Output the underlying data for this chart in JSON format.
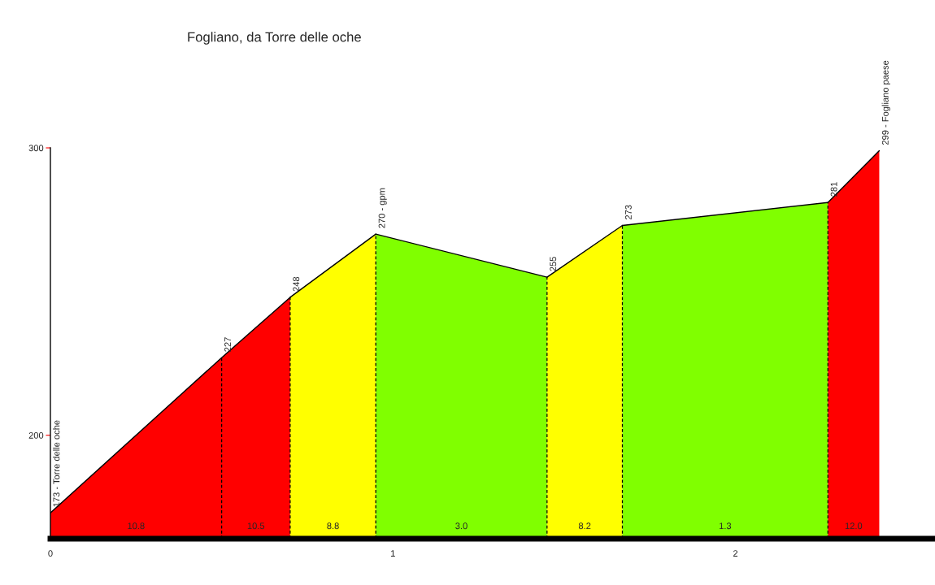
{
  "chart_data": {
    "type": "area",
    "title": "Fogliano, da Torre delle oche",
    "series": [
      {
        "color": "#ff0000",
        "x": [
          0,
          0.5,
          0.7
        ],
        "values": [
          173,
          227,
          248
        ],
        "value_labels": [
          "173 - Torre delle oche",
          "227",
          null
        ]
      },
      {
        "color": "#ffff00",
        "x": [
          0.7,
          0.95
        ],
        "values": [
          248,
          270
        ],
        "value_labels": [
          "248",
          null
        ]
      },
      {
        "color": "#80ff00",
        "x": [
          0.95,
          1.45
        ],
        "values": [
          270,
          255
        ],
        "value_labels": [
          "270 - gpm",
          null
        ]
      },
      {
        "color": "#ffff00",
        "x": [
          1.45,
          1.67
        ],
        "values": [
          255,
          273
        ],
        "value_labels": [
          "255",
          null
        ]
      },
      {
        "color": "#80ff00",
        "x": [
          1.67,
          2.27
        ],
        "values": [
          273,
          281
        ],
        "value_labels": [
          "273",
          null
        ]
      },
      {
        "color": "#ff0000",
        "x": [
          2.27,
          2.42
        ],
        "values": [
          281,
          299
        ],
        "value_labels": [
          "281",
          "299 - Fogliano paese"
        ]
      }
    ],
    "ref_lines": [
      {
        "axis": "x",
        "value": 0.5,
        "color": "#000000",
        "line_style": "dashed"
      },
      {
        "axis": "x",
        "value": 0.7,
        "color": "#000000",
        "line_style": "dashed"
      },
      {
        "axis": "x",
        "value": 0.95,
        "color": "#000000",
        "line_style": "dashed"
      },
      {
        "axis": "x",
        "value": 1.45,
        "color": "#000000",
        "line_style": "dashed"
      },
      {
        "axis": "x",
        "value": 1.67,
        "color": "#000000",
        "line_style": "dashed"
      },
      {
        "axis": "x",
        "value": 2.27,
        "color": "#000000",
        "line_style": "dashed"
      }
    ],
    "annotations": [
      "10.8",
      "10.5",
      "8.8",
      "3.0",
      "8.2",
      "1.3",
      "12.0"
    ],
    "xlim": [
      0,
      2.58
    ],
    "ylim": [
      164,
      300
    ],
    "xticks": [
      0,
      1,
      2
    ],
    "yticks": [
      200,
      300
    ],
    "grid": false,
    "line_style": "solid"
  }
}
